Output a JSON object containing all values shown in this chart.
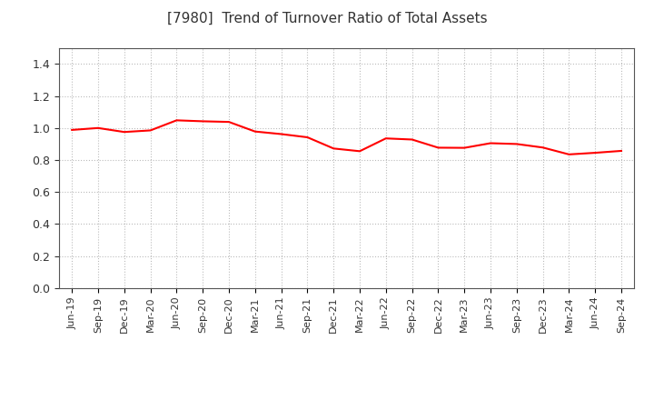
{
  "title": "[7980]  Trend of Turnover Ratio of Total Assets",
  "line_color": "#FF0000",
  "line_width": 1.5,
  "background_color": "#FFFFFF",
  "grid_color": "#AAAAAA",
  "title_color": "#333333",
  "ylim": [
    0.0,
    1.5
  ],
  "yticks": [
    0.0,
    0.2,
    0.4,
    0.6,
    0.8,
    1.0,
    1.2,
    1.4
  ],
  "x_labels": [
    "Jun-19",
    "Sep-19",
    "Dec-19",
    "Mar-20",
    "Jun-20",
    "Sep-20",
    "Dec-20",
    "Mar-21",
    "Jun-21",
    "Sep-21",
    "Dec-21",
    "Mar-22",
    "Jun-22",
    "Sep-22",
    "Dec-22",
    "Mar-23",
    "Jun-23",
    "Sep-23",
    "Dec-23",
    "Mar-24",
    "Jun-24",
    "Sep-24"
  ],
  "values": [
    0.988,
    1.0,
    0.975,
    0.985,
    1.048,
    1.042,
    1.038,
    0.978,
    0.962,
    0.942,
    0.872,
    0.855,
    0.935,
    0.928,
    0.877,
    0.876,
    0.905,
    0.9,
    0.878,
    0.835,
    0.845,
    0.857
  ]
}
